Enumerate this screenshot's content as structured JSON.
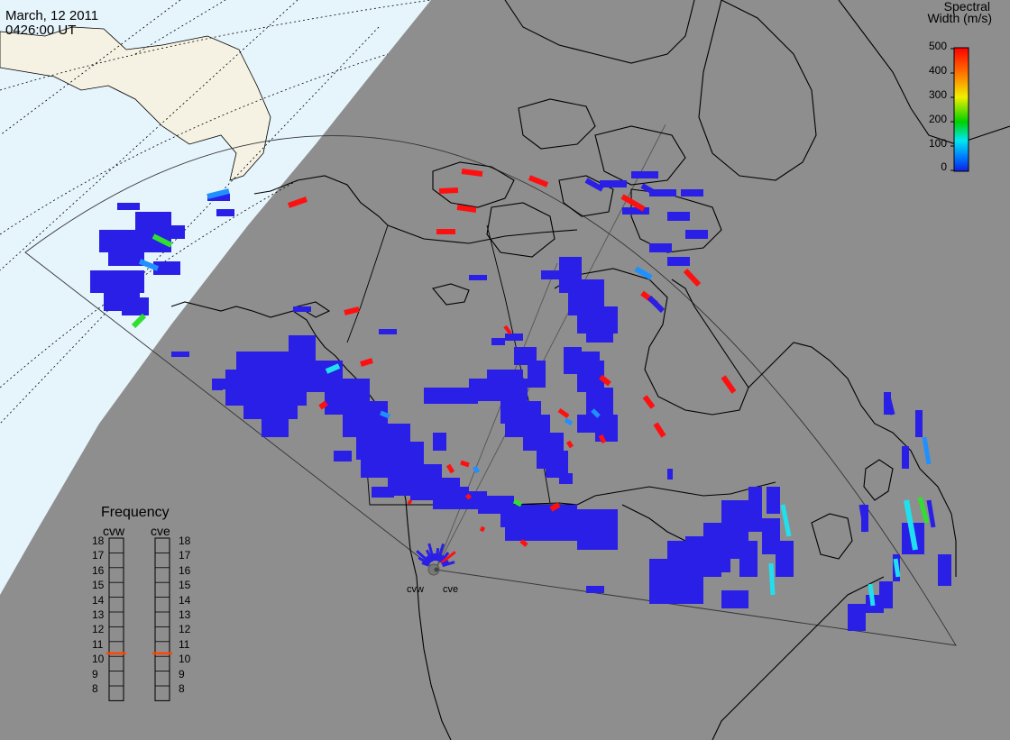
{
  "header": {
    "date": "March, 12 2011",
    "time": "0426:00 UT"
  },
  "colorbar": {
    "title_line1": "Spectral",
    "title_line2": "Width (m/s)",
    "ticks": [
      "500",
      "400",
      "300",
      "200",
      "100",
      "0"
    ],
    "colors": [
      "#ff0000",
      "#ff8c00",
      "#ffff00",
      "#00e000",
      "#00ffff",
      "#0040ff",
      "#2020e0"
    ]
  },
  "frequency_panel": {
    "title": "Frequency",
    "radars": [
      {
        "name": "cvw",
        "selected": "11"
      },
      {
        "name": "cve",
        "selected": "11"
      }
    ],
    "levels": [
      "18",
      "17",
      "16",
      "15",
      "14",
      "13",
      "12",
      "11",
      "10",
      "9",
      "8"
    ],
    "marker_color": "#ff4500"
  },
  "sites": [
    {
      "name": "cvw"
    },
    {
      "name": "cve"
    }
  ],
  "map": {
    "land_color": "#8e8e8e",
    "day_ocean_color": "#e6f4fb",
    "day_land_color": "#f5f2e3",
    "coast_color": "#000000"
  }
}
